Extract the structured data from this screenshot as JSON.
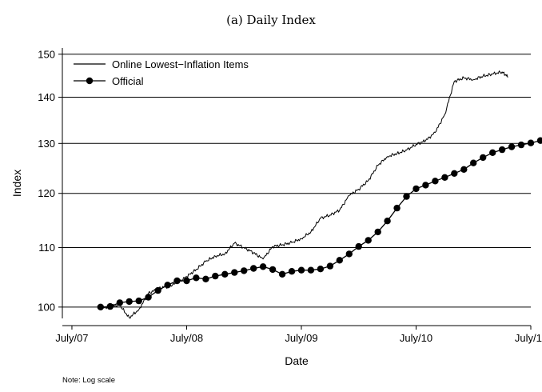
{
  "chart_data": {
    "type": "line",
    "title": "(a) Daily Index",
    "xlabel": "Date",
    "ylabel": "Index",
    "note": "Note: Log scale",
    "y_scale": "log",
    "ylim": [
      98.2,
      151.5
    ],
    "xlim": [
      "2007-06",
      "2011-07"
    ],
    "grid": "horizontal",
    "legend_position": "top-left",
    "y_ticks": [
      {
        "value": 100,
        "label": "100"
      },
      {
        "value": 110,
        "label": "110"
      },
      {
        "value": 120,
        "label": "120"
      },
      {
        "value": 130,
        "label": "130"
      },
      {
        "value": 140,
        "label": "140"
      },
      {
        "value": 150,
        "label": "150"
      }
    ],
    "x_ticks": [
      {
        "value": "2007-07",
        "label": "July/07"
      },
      {
        "value": "2008-07",
        "label": "July/08"
      },
      {
        "value": "2009-07",
        "label": "July/09"
      },
      {
        "value": "2010-07",
        "label": "July/10"
      },
      {
        "value": "2011-07",
        "label": "July/11"
      }
    ],
    "series": [
      {
        "name": "Online Lowest−Inflation Items",
        "style": "line",
        "points": [
          [
            "2007-10",
            99.8
          ],
          [
            "2007-11",
            100.1
          ],
          [
            "2007-12",
            100.3
          ],
          [
            "2008-01",
            98.3
          ],
          [
            "2008-02",
            99.6
          ],
          [
            "2008-03",
            102.2
          ],
          [
            "2008-04",
            103.0
          ],
          [
            "2008-05",
            103.4
          ],
          [
            "2008-06",
            103.9
          ],
          [
            "2008-07",
            105.0
          ],
          [
            "2008-08",
            106.2
          ],
          [
            "2008-09",
            107.6
          ],
          [
            "2008-10",
            108.5
          ],
          [
            "2008-11",
            108.9
          ],
          [
            "2008-12",
            110.8
          ],
          [
            "2009-01",
            110.0
          ],
          [
            "2009-02",
            109.1
          ],
          [
            "2009-03",
            108.0
          ],
          [
            "2009-04",
            110.2
          ],
          [
            "2009-05",
            110.5
          ],
          [
            "2009-06",
            110.9
          ],
          [
            "2009-07",
            111.6
          ],
          [
            "2009-08",
            112.8
          ],
          [
            "2009-09",
            115.3
          ],
          [
            "2009-10",
            115.9
          ],
          [
            "2009-11",
            116.8
          ],
          [
            "2009-12",
            119.6
          ],
          [
            "2010-01",
            120.8
          ],
          [
            "2010-02",
            122.5
          ],
          [
            "2010-03",
            125.5
          ],
          [
            "2010-04",
            127.3
          ],
          [
            "2010-05",
            127.9
          ],
          [
            "2010-06",
            128.6
          ],
          [
            "2010-07",
            129.8
          ],
          [
            "2010-08",
            130.6
          ],
          [
            "2010-09",
            132.3
          ],
          [
            "2010-10",
            136.2
          ],
          [
            "2010-11",
            143.6
          ],
          [
            "2010-12",
            144.4
          ],
          [
            "2011-01",
            144.0
          ],
          [
            "2011-02",
            144.8
          ],
          [
            "2011-03",
            145.3
          ],
          [
            "2011-04",
            145.8
          ],
          [
            "2011-04-20",
            144.6
          ]
        ]
      },
      {
        "name": "Official",
        "style": "line-markers",
        "points": [
          [
            "2007-10",
            100.0
          ],
          [
            "2007-11",
            100.1
          ],
          [
            "2007-12",
            100.7
          ],
          [
            "2008-01",
            100.9
          ],
          [
            "2008-02",
            101.0
          ],
          [
            "2008-03",
            101.6
          ],
          [
            "2008-04",
            102.7
          ],
          [
            "2008-05",
            103.6
          ],
          [
            "2008-06",
            104.3
          ],
          [
            "2008-07",
            104.3
          ],
          [
            "2008-08",
            104.8
          ],
          [
            "2008-09",
            104.6
          ],
          [
            "2008-10",
            105.1
          ],
          [
            "2008-11",
            105.4
          ],
          [
            "2008-12",
            105.7
          ],
          [
            "2009-01",
            106.0
          ],
          [
            "2009-02",
            106.4
          ],
          [
            "2009-03",
            106.7
          ],
          [
            "2009-04",
            106.2
          ],
          [
            "2009-05",
            105.4
          ],
          [
            "2009-06",
            105.9
          ],
          [
            "2009-07",
            106.1
          ],
          [
            "2009-08",
            106.1
          ],
          [
            "2009-09",
            106.3
          ],
          [
            "2009-10",
            106.8
          ],
          [
            "2009-11",
            107.8
          ],
          [
            "2009-12",
            108.9
          ],
          [
            "2010-01",
            110.2
          ],
          [
            "2010-02",
            111.3
          ],
          [
            "2010-03",
            112.8
          ],
          [
            "2010-04",
            114.8
          ],
          [
            "2010-05",
            117.2
          ],
          [
            "2010-06",
            119.4
          ],
          [
            "2010-07",
            120.9
          ],
          [
            "2010-08",
            121.6
          ],
          [
            "2010-09",
            122.4
          ],
          [
            "2010-10",
            123.1
          ],
          [
            "2010-11",
            123.9
          ],
          [
            "2010-12",
            124.7
          ],
          [
            "2011-01",
            126.0
          ],
          [
            "2011-02",
            127.1
          ],
          [
            "2011-03",
            128.1
          ],
          [
            "2011-04",
            128.7
          ],
          [
            "2011-05",
            129.3
          ],
          [
            "2011-06",
            129.7
          ],
          [
            "2011-07",
            130.1
          ],
          [
            "2011-08",
            130.6
          ],
          [
            "2011-09",
            131.2
          ]
        ]
      }
    ]
  }
}
